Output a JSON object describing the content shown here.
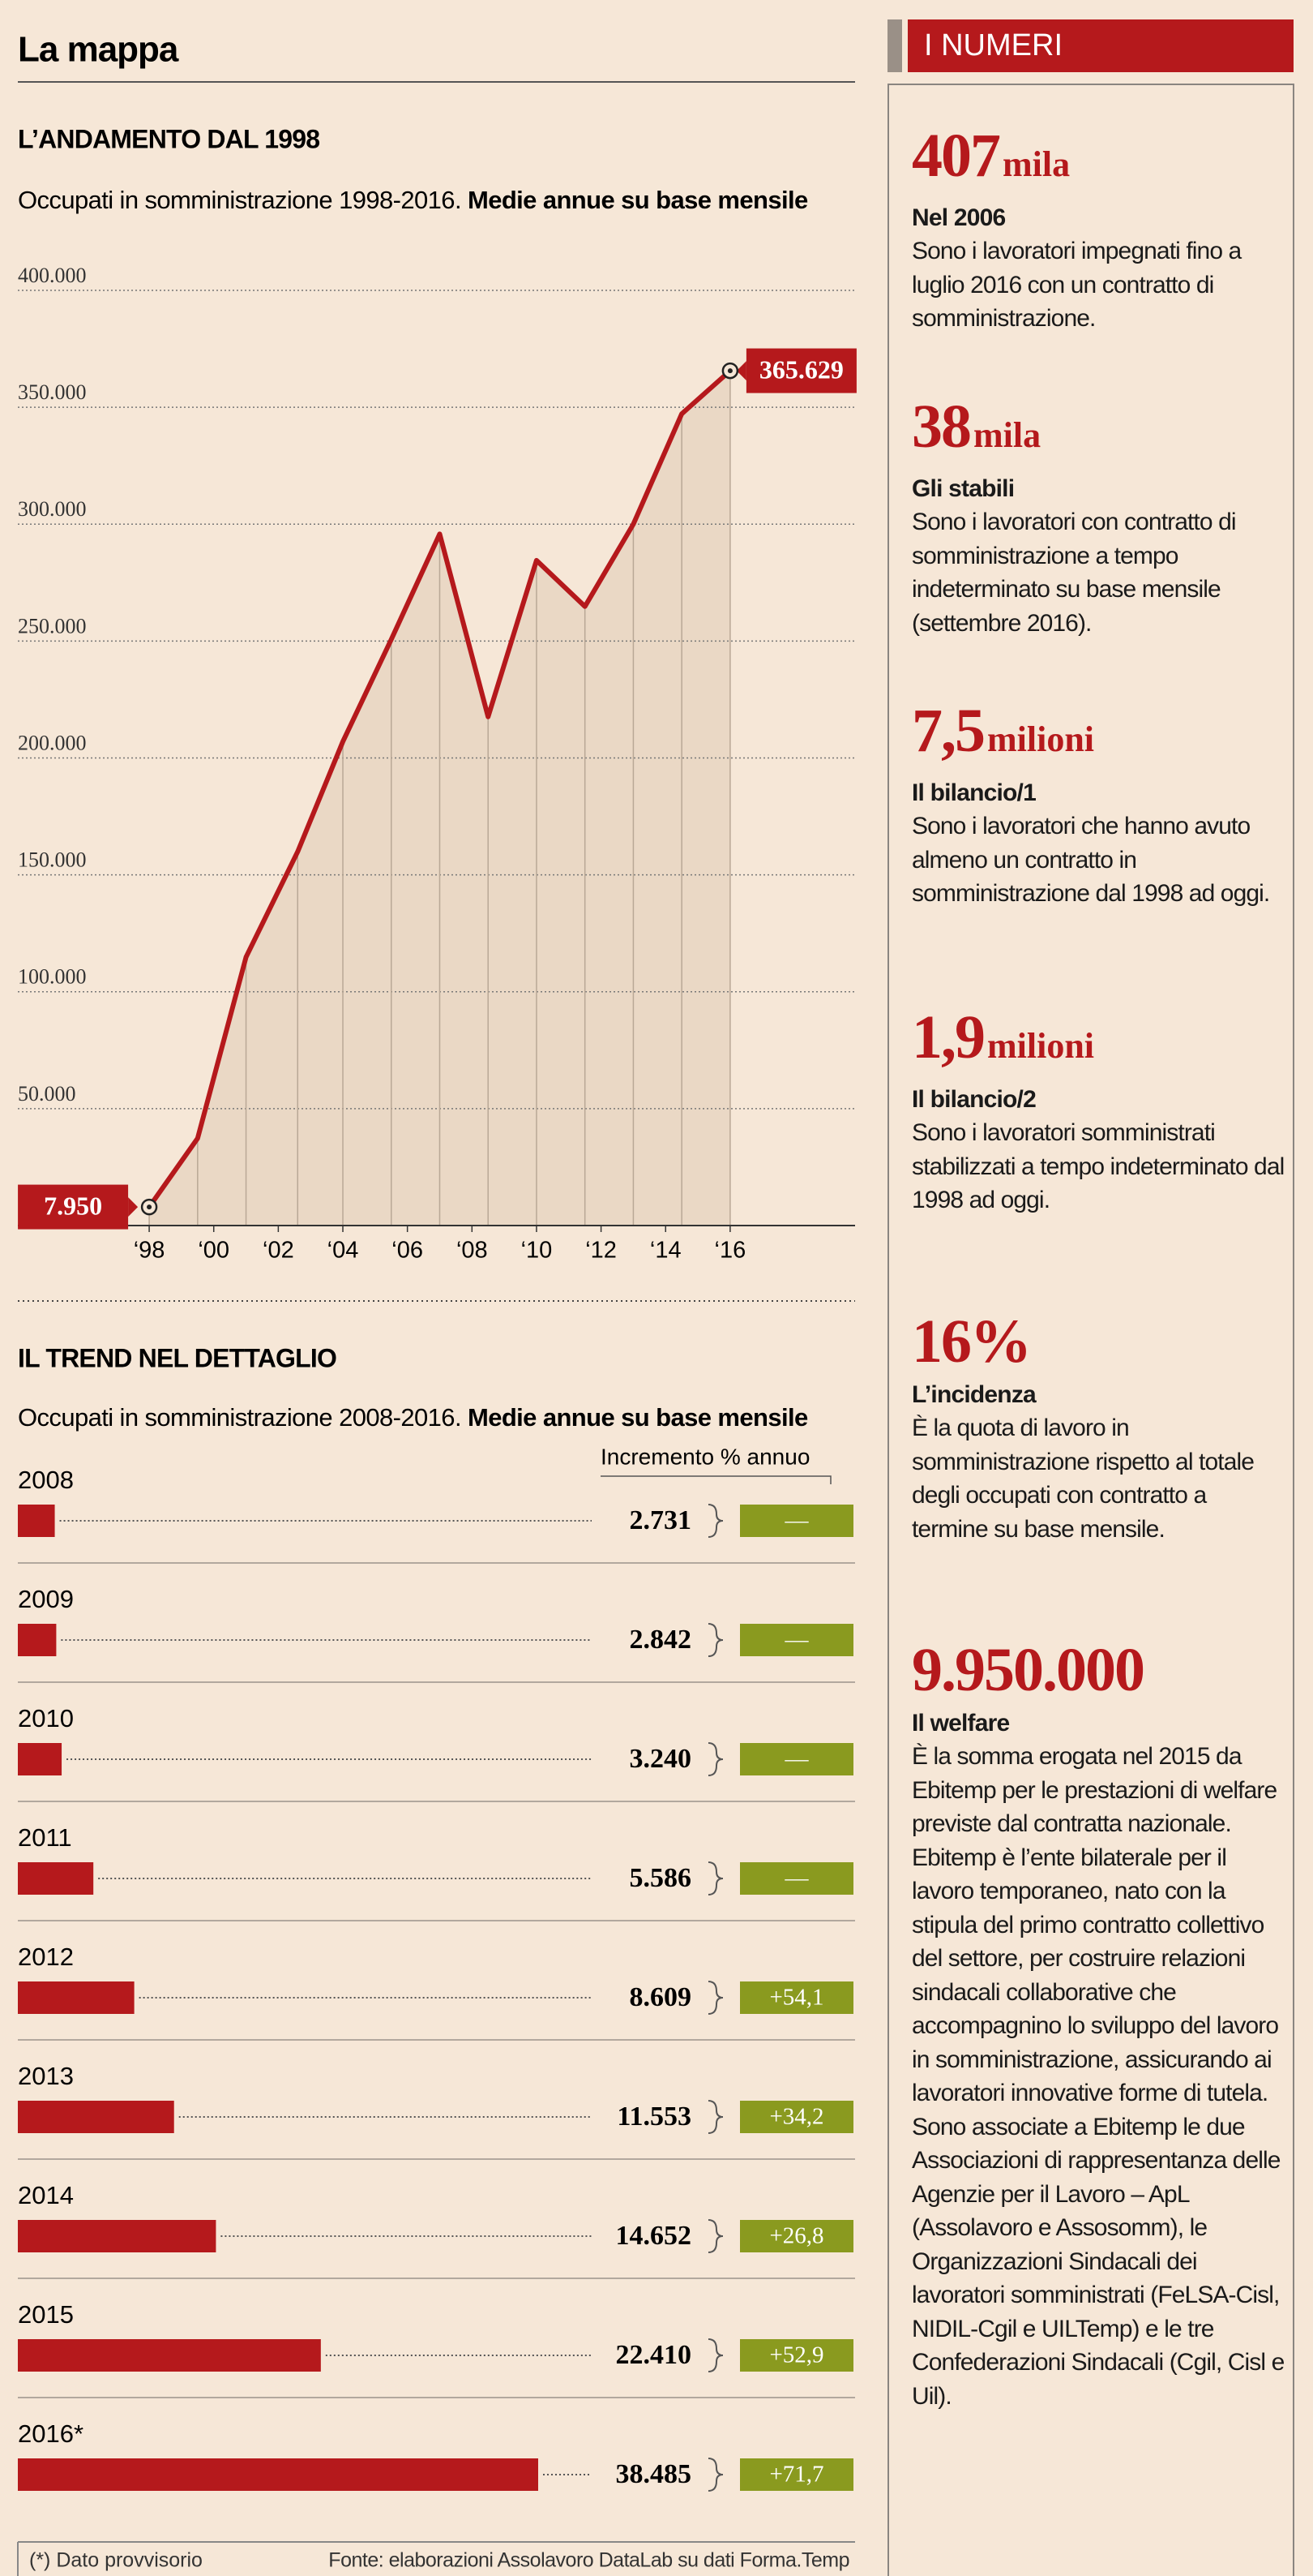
{
  "header": {
    "title": "La mappa"
  },
  "chart_data": [
    {
      "type": "line",
      "title": "L’ANDAMENTO DAL 1998",
      "subtitle": "Occupati in somministrazione 1998-2016.",
      "subtitle_bold": "Medie annue su base mensile",
      "x": [
        1998,
        1999.5,
        2001,
        2002.6,
        2004,
        2005.5,
        2007,
        2008.5,
        2010,
        2011.5,
        2013,
        2014.5,
        2016
      ],
      "series": [
        {
          "color": "#b5191c",
          "values": [
            7950,
            37300,
            114800,
            159900,
            207000,
            250700,
            295800,
            217600,
            284500,
            264800,
            300000,
            347200,
            365629
          ],
          "value_labels": [
            "7.950",
            null,
            null,
            null,
            null,
            null,
            null,
            null,
            null,
            null,
            null,
            null,
            "365.629"
          ]
        }
      ],
      "xlim": [
        1993.93,
        2019.87
      ],
      "xticks": [
        {
          "value": 1998,
          "label": "‘98"
        },
        {
          "value": 2000,
          "label": "‘00"
        },
        {
          "value": 2002,
          "label": "‘02"
        },
        {
          "value": 2004,
          "label": "‘04"
        },
        {
          "value": 2006,
          "label": "‘06"
        },
        {
          "value": 2008,
          "label": "‘08"
        },
        {
          "value": 2010,
          "label": "‘10"
        },
        {
          "value": 2012,
          "label": "‘12"
        },
        {
          "value": 2014,
          "label": "‘14"
        },
        {
          "value": 2016,
          "label": "‘16"
        }
      ],
      "ylim": [
        0,
        400000
      ],
      "yticks": [
        {
          "value": 50000,
          "label": "50.000"
        },
        {
          "value": 100000,
          "label": "100.000"
        },
        {
          "value": 150000,
          "label": "150.000"
        },
        {
          "value": 200000,
          "label": "200.000"
        },
        {
          "value": 250000,
          "label": "250.000"
        },
        {
          "value": 300000,
          "label": "300.000"
        },
        {
          "value": 350000,
          "label": "350.000"
        },
        {
          "value": 400000,
          "label": "400.000"
        }
      ],
      "grid": true,
      "area_color": "#ead8c5"
    },
    {
      "type": "bar",
      "orientation": "horizontal",
      "title": "IL TREND NEL DETTAGLIO",
      "subtitle": "Occupati in somministrazione 2008-2016.",
      "subtitle_bold": "Medie annue su base mensile",
      "categories": [
        "2008",
        "2009",
        "2010",
        "2011",
        "2012",
        "2013",
        "2014",
        "2015",
        "2016*"
      ],
      "series": [
        {
          "color": "#b5191c",
          "values": [
            2731,
            2842,
            3240,
            5586,
            8609,
            11553,
            14652,
            22410,
            38485
          ],
          "value_labels": [
            "2.731",
            "2.842",
            "3.240",
            "5.586",
            "8.609",
            "11.553",
            "14.652",
            "22.410",
            "38.485"
          ]
        },
        {
          "name": "Incremento % annuo",
          "color": "#8a9a1f",
          "values": [
            null,
            null,
            null,
            null,
            54.1,
            34.2,
            26.8,
            52.9,
            71.7
          ],
          "value_labels": [
            "—",
            "—",
            "—",
            "—",
            "+54,1",
            "+34,2",
            "+26,8",
            "+52,9",
            "+71,7"
          ]
        }
      ]
    }
  ],
  "sidebar": {
    "title": "I NUMERI",
    "items": [
      {
        "number": "407",
        "unit": "mila",
        "heading": "Nel 2006",
        "text": "Sono i lavoratori impegnati fino a luglio 2016 con un contratto di somministrazione."
      },
      {
        "number": "38",
        "unit": "mila",
        "heading": "Gli stabili",
        "text": "Sono i lavoratori con contratto di somministrazione a tempo indeterminato su base mensile (settembre 2016)."
      },
      {
        "number": "7,5",
        "unit": "milioni",
        "heading": "Il bilancio/1",
        "text": "Sono i lavoratori che hanno avuto almeno un contratto in somministrazione dal 1998 ad oggi."
      },
      {
        "number": "1,9",
        "unit": "milioni",
        "heading": "Il bilancio/2",
        "text": "Sono i lavoratori somministrati stabilizzati a tempo indeterminato dal 1998 ad oggi."
      },
      {
        "number": "16%",
        "heading": "L’incidenza",
        "text": "È la quota di lavoro in somministrazione rispetto al totale degli occupati con contratto a termine su base mensile."
      },
      {
        "number": "9.950.000",
        "heading": "Il welfare",
        "text": "È la somma erogata nel 2015 da Ebitemp per le prestazioni di welfare previste dal contratta nazionale. Ebitemp è l’ente bilaterale per il lavoro temporaneo, nato con la stipula del primo contratto collettivo del settore, per costruire relazioni sindacali collaborative che accompagnino lo sviluppo del lavoro in somministrazione, assicurando ai lavoratori innovative forme di tutela. Sono associate a Ebitemp le due Associazioni di rappresentanza delle Agenzie per il Lavoro – ApL (Assolavoro e Assosomm), le Organizzazioni Sindacali dei lavoratori somministrati (FeLSA-Cisl, NIDIL-Cgil e UILTemp) e le tre Confederazioni Sindacali (Cgil, Cisl e Uil)."
      }
    ]
  },
  "footer": {
    "note": "(*) Dato provvisorio",
    "source": "Fonte: elaborazioni Assolavoro DataLab su dati Forma.Temp"
  }
}
